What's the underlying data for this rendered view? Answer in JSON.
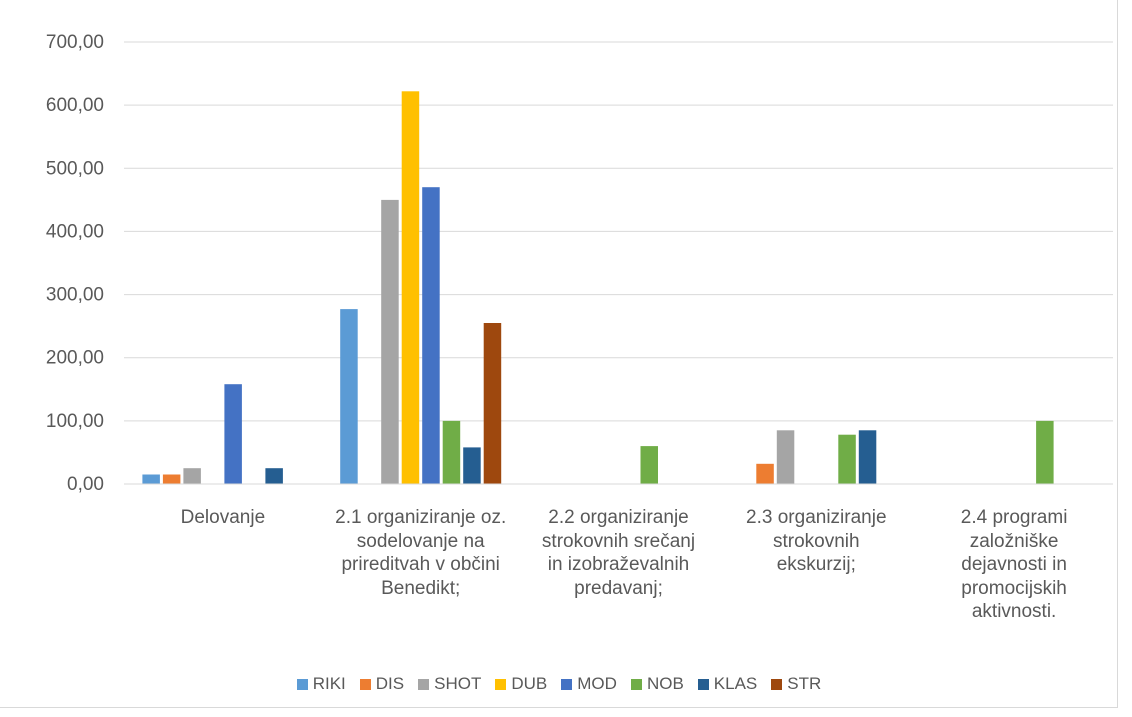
{
  "chart_data": {
    "type": "bar",
    "categories": [
      "Delovanje",
      "2.1 organiziranje oz.\nsodelovanje na\nprireditvah v občini\nBenedikt;",
      "2.2     organiziranje\nstrokovnih srečanj\nin izobraževalnih\npredavanj;",
      "2.3     organiziranje\nstrokovnih\nekskurzij;",
      "2.4 programi\nzaložniške\ndejavnosti in\npromocijskih\naktivnosti."
    ],
    "series": [
      {
        "name": "RIKI",
        "color": "#5b9bd5",
        "values": [
          15,
          277,
          0,
          0,
          0
        ]
      },
      {
        "name": "DIS",
        "color": "#ed7d31",
        "values": [
          15,
          0,
          0,
          32,
          0
        ]
      },
      {
        "name": "SHOT",
        "color": "#a5a5a5",
        "values": [
          25,
          450,
          0,
          85,
          0
        ]
      },
      {
        "name": "DUB",
        "color": "#ffc000",
        "values": [
          0,
          622,
          0,
          0,
          0
        ]
      },
      {
        "name": "MOD",
        "color": "#4472c4",
        "values": [
          158,
          470,
          0,
          0,
          0
        ]
      },
      {
        "name": "NOB",
        "color": "#70ad47",
        "values": [
          0,
          100,
          60,
          78,
          100
        ]
      },
      {
        "name": "KLAS",
        "color": "#255e91",
        "values": [
          25,
          58,
          0,
          85,
          0
        ]
      },
      {
        "name": "STR",
        "color": "#9e480e",
        "values": [
          0,
          255,
          0,
          0,
          0
        ]
      }
    ],
    "yticks": [
      "0,00",
      "100,00",
      "200,00",
      "300,00",
      "400,00",
      "500,00",
      "600,00",
      "700,00"
    ],
    "ylim": [
      0,
      700
    ],
    "grid": true,
    "legend_position": "bottom"
  }
}
